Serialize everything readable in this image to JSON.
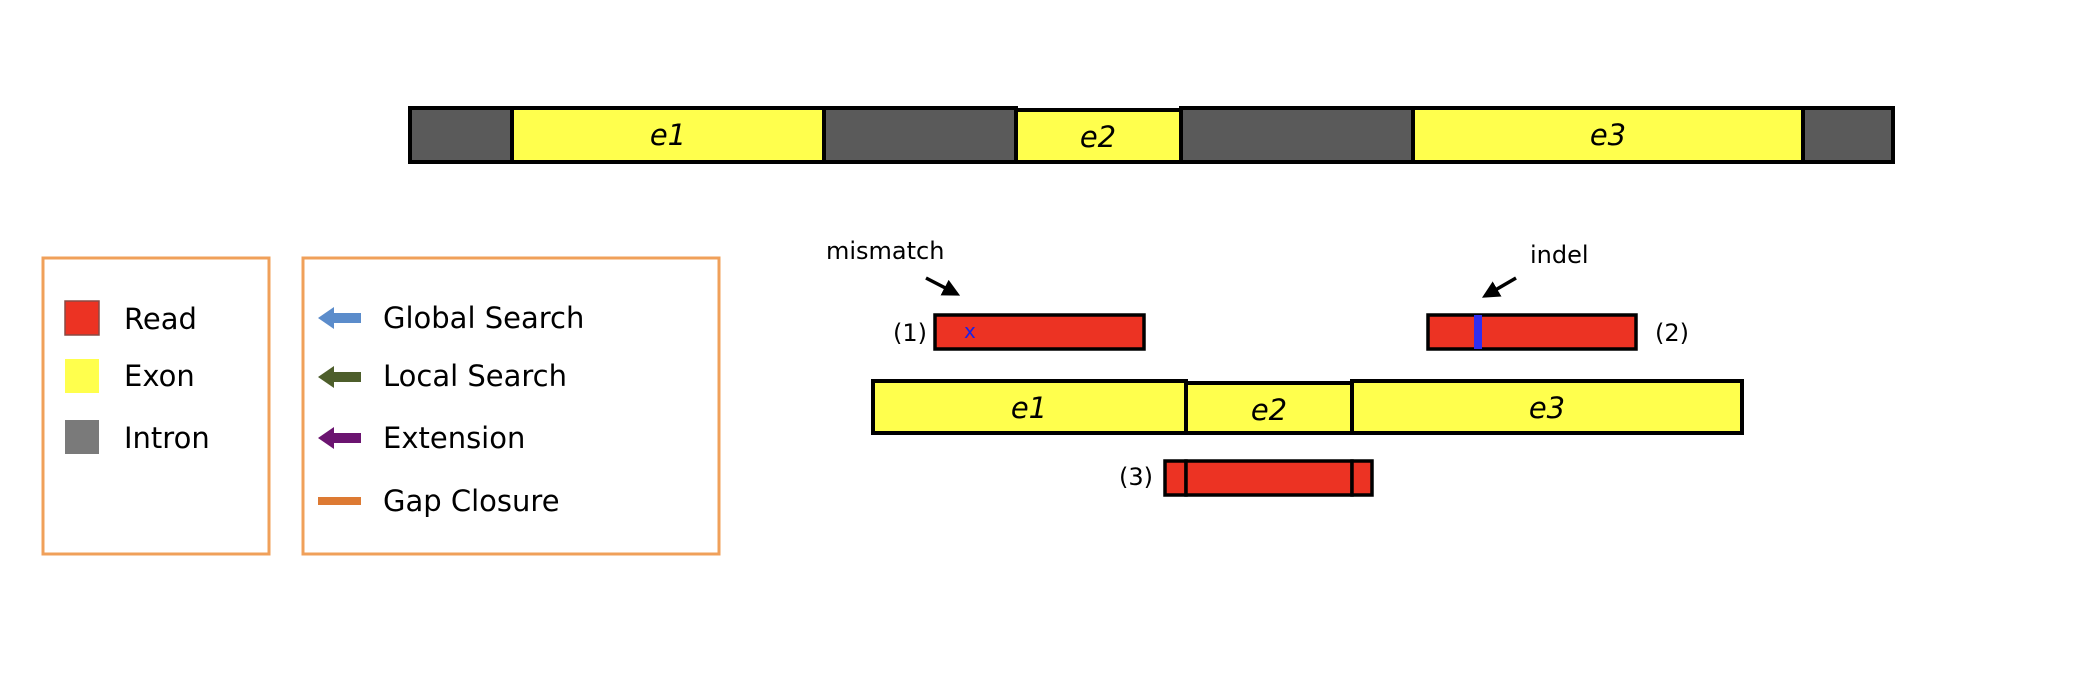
{
  "colors": {
    "exon": "#ffff4d",
    "intron": "#5a5a5a",
    "read": "#ec3323",
    "legend_border": "#f0a05a",
    "global_search": "#5b8ccb",
    "local_search": "#4d5e2b",
    "extension": "#6b1470",
    "gap_closure": "#dd7a33",
    "indel": "#2f2ef0",
    "mismatch": "#1a22e6"
  },
  "gene": {
    "exon_labels": [
      "e1",
      "e2",
      "e3"
    ]
  },
  "transcript": {
    "exon_labels": [
      "e1",
      "e2",
      "e3"
    ]
  },
  "reads": {
    "read1_label": "(1)",
    "read2_label": "(2)",
    "read3_label": "(3)",
    "mismatch_label": "mismatch",
    "mismatch_mark": "x",
    "indel_label": "indel"
  },
  "legend_types": {
    "items": [
      {
        "label": "Read",
        "icon": "read-swatch"
      },
      {
        "label": "Exon",
        "icon": "exon-swatch"
      },
      {
        "label": "Intron",
        "icon": "intron-swatch"
      }
    ]
  },
  "legend_steps": {
    "items": [
      {
        "label": "Global Search",
        "icon": "arrow-left-icon"
      },
      {
        "label": "Local Search",
        "icon": "arrow-left-icon"
      },
      {
        "label": "Extension",
        "icon": "arrow-left-icon"
      },
      {
        "label": "Gap Closure",
        "icon": "dash-icon"
      }
    ]
  }
}
